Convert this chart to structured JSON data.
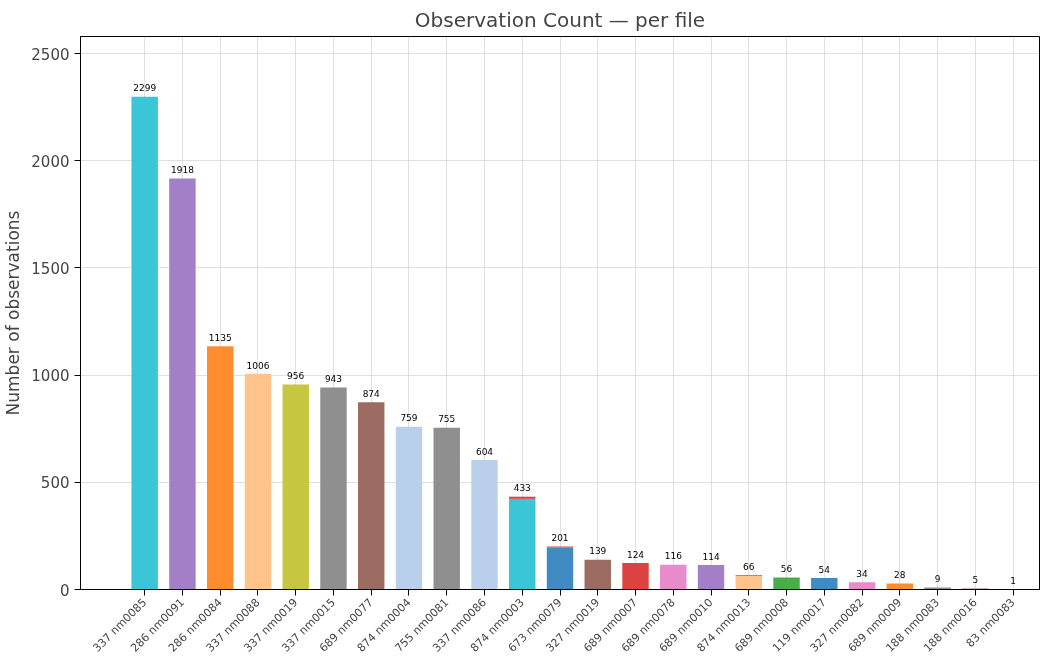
{
  "chart_data": {
    "type": "bar",
    "title": "Observation Count — per file",
    "ylabel": "Number of observations",
    "categories": [
      "337 nm0085",
      "286 nm0091",
      "286 nm0084",
      "337 nm0088",
      "337 nm0019",
      "337 nm0015",
      "689 nm0077",
      "874 nm0004",
      "755 nm0081",
      "337 nm0086",
      "874 nm0003",
      "673 nm0079",
      "327 nm0019",
      "689 nm0007",
      "689 nm0078",
      "689 nm0010",
      "874 nm0013",
      "689 nm0008",
      "119 nm0017",
      "327 nm0082",
      "689 nm0009",
      "188 nm0083",
      "188 nm0016",
      "83 nm0083"
    ],
    "stacked": true,
    "series": [
      {
        "colors": [
          "#3ac6d6",
          "#a37fc7",
          "#ff8c2e",
          "#ffc48c",
          "#c6c640",
          "#8f8f8f",
          "#9c6b62",
          "#b9cfec",
          "#8f8f8f",
          "#b9cfec",
          "#3ac6d6",
          "#3f8bc2",
          "#9c6b62",
          "#dc4242",
          "#e78bcb",
          "#a37fc7",
          "#ffc48c",
          "#4aad4a",
          "#3f8bc2",
          "#e78bcb",
          "#ff8c2e",
          "#8f8f8f",
          "#9c6b62",
          "#8f8f8f"
        ],
        "values": [
          2299,
          1918,
          1135,
          1006,
          956,
          943,
          874,
          759,
          755,
          604,
          423,
          196,
          139,
          124,
          116,
          114,
          63,
          56,
          54,
          34,
          28,
          9,
          5,
          1
        ]
      },
      {
        "color": "#dc4242",
        "values": [
          null,
          null,
          null,
          null,
          null,
          null,
          null,
          null,
          null,
          null,
          10,
          5,
          null,
          null,
          null,
          null,
          3,
          null,
          null,
          null,
          null,
          null,
          null,
          null
        ]
      }
    ],
    "totals": [
      "2299",
      "1918",
      "1135",
      "1006",
      "956",
      "943",
      "874",
      "759",
      "755",
      "604",
      "433",
      "201",
      "139",
      "124",
      "116",
      "114",
      "66",
      "56",
      "54",
      "34",
      "28",
      "9",
      "5",
      "1"
    ],
    "ylim": [
      0,
      2580
    ],
    "yticks": [
      0,
      500,
      1000,
      1500,
      2000,
      2500
    ],
    "grid": true
  }
}
